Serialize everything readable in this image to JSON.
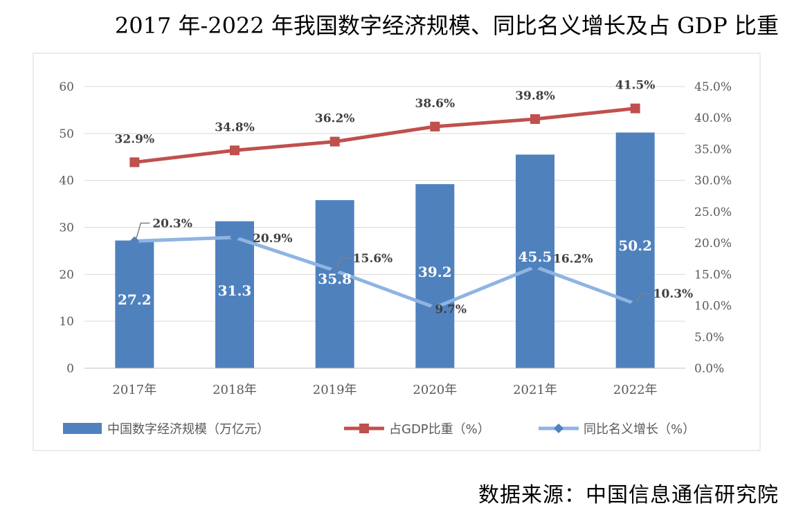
{
  "title": "2017 年-2022 年我国数字经济规模、同比名义增长及占 GDP 比重",
  "source": "数据来源：中国信息通信研究院",
  "chart_data": {
    "type": "bar",
    "categories": [
      "2017年",
      "2018年",
      "2019年",
      "2020年",
      "2021年",
      "2022年"
    ],
    "series": [
      {
        "name": "中国数字经济规模（万亿元）",
        "type": "bar",
        "axis": "left",
        "color": "#4F81BD",
        "values": [
          27.2,
          31.3,
          35.8,
          39.2,
          45.5,
          50.2
        ],
        "labels": [
          "27.2",
          "31.3",
          "35.8",
          "39.2",
          "45.5",
          "50.2"
        ]
      },
      {
        "name": "占GDP比重（%）",
        "type": "line",
        "axis": "right",
        "color": "#C0504D",
        "values": [
          32.9,
          34.8,
          36.2,
          38.6,
          39.8,
          41.5
        ],
        "labels": [
          "32.9%",
          "34.8%",
          "36.2%",
          "38.6%",
          "39.8%",
          "41.5%"
        ]
      },
      {
        "name": "同比名义增长（%）",
        "type": "line",
        "axis": "right",
        "color": "#8EB4E3",
        "marker_color": "#4F81BD",
        "values": [
          20.3,
          20.9,
          15.6,
          9.7,
          16.2,
          10.3
        ],
        "labels": [
          "20.3%",
          "20.9%",
          "15.6%",
          "9.7%",
          "16.2%",
          "10.3%"
        ]
      }
    ],
    "y_left": {
      "min": 0,
      "max": 60,
      "ticks": [
        "0",
        "10",
        "20",
        "30",
        "40",
        "50",
        "60"
      ]
    },
    "y_right": {
      "min": 0,
      "max": 45,
      "ticks": [
        "0.0%",
        "5.0%",
        "10.0%",
        "15.0%",
        "20.0%",
        "25.0%",
        "30.0%",
        "35.0%",
        "40.0%",
        "45.0%"
      ]
    },
    "grid": true,
    "legend_position": "bottom"
  }
}
